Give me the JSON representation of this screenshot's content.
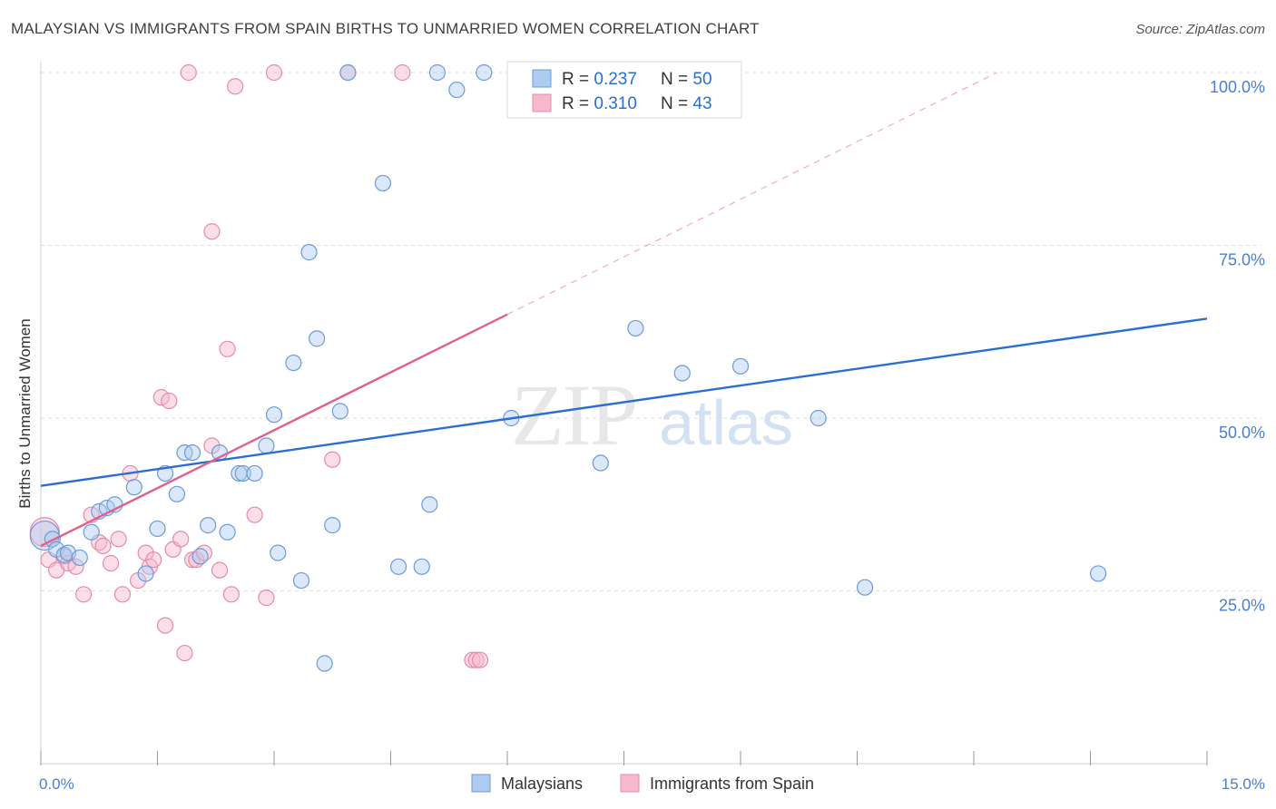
{
  "title": "MALAYSIAN VS IMMIGRANTS FROM SPAIN BIRTHS TO UNMARRIED WOMEN CORRELATION CHART",
  "source": "Source: ZipAtlas.com",
  "watermark": {
    "zip": "ZIP",
    "atlas": "atlas"
  },
  "colors": {
    "blue_fill": "#aecbf2",
    "blue_stroke": "#6b9bd8",
    "blue_line": "#2a6fd0",
    "pink_fill": "#f7b9cb",
    "pink_stroke": "#e88aa8",
    "pink_line": "#e0608e",
    "tick_label": "#4a7fd0",
    "grid": "#dcdcdc"
  },
  "legend": [
    {
      "r_label": "R = ",
      "r_value": "0.237",
      "n_label": "N = ",
      "n_value": "50"
    },
    {
      "r_label": "R = ",
      "r_value": "0.310",
      "n_label": "N = ",
      "n_value": "43"
    }
  ],
  "bottom_legend": [
    "Malaysians",
    "Immigrants from Spain"
  ],
  "chart_data": {
    "type": "scatter",
    "xlabel": "",
    "ylabel": "Births to Unmarried Women",
    "xlim": [
      0,
      15
    ],
    "ylim": [
      0,
      100
    ],
    "x_tick_labels": [
      "0.0%",
      "15.0%"
    ],
    "y_tick_labels": [
      "25.0%",
      "50.0%",
      "75.0%",
      "100.0%"
    ],
    "y_tick_values": [
      25,
      50,
      75,
      100
    ],
    "series": [
      {
        "name": "Malaysians",
        "r": 0.237,
        "n": 50,
        "trend": {
          "x": [
            0,
            15
          ],
          "y": [
            40.2,
            64.4
          ]
        },
        "points": [
          [
            0.05,
            33.0
          ],
          [
            0.15,
            32.5
          ],
          [
            0.2,
            31.0
          ],
          [
            0.3,
            30.2
          ],
          [
            0.35,
            30.5
          ],
          [
            0.5,
            29.8
          ],
          [
            0.65,
            33.5
          ],
          [
            0.75,
            36.5
          ],
          [
            0.85,
            37.0
          ],
          [
            0.95,
            37.5
          ],
          [
            1.2,
            40.0
          ],
          [
            1.35,
            27.5
          ],
          [
            1.5,
            34.0
          ],
          [
            1.6,
            42.0
          ],
          [
            1.75,
            39.0
          ],
          [
            1.85,
            45.0
          ],
          [
            1.95,
            45.0
          ],
          [
            2.05,
            30.0
          ],
          [
            2.15,
            34.5
          ],
          [
            2.3,
            45.0
          ],
          [
            2.4,
            33.5
          ],
          [
            2.55,
            42.0
          ],
          [
            2.6,
            42.0
          ],
          [
            2.75,
            42.0
          ],
          [
            2.9,
            46.0
          ],
          [
            3.0,
            50.5
          ],
          [
            3.05,
            30.5
          ],
          [
            3.25,
            58.0
          ],
          [
            3.35,
            26.5
          ],
          [
            3.45,
            74.0
          ],
          [
            3.55,
            61.5
          ],
          [
            3.75,
            34.5
          ],
          [
            3.85,
            51.0
          ],
          [
            3.95,
            100.0
          ],
          [
            4.4,
            84.0
          ],
          [
            4.6,
            28.5
          ],
          [
            4.9,
            28.5
          ],
          [
            5.0,
            37.5
          ],
          [
            5.1,
            100.0
          ],
          [
            5.35,
            97.5
          ],
          [
            5.7,
            100.0
          ],
          [
            3.65,
            14.5
          ],
          [
            6.05,
            50.0
          ],
          [
            7.2,
            43.5
          ],
          [
            7.65,
            63.0
          ],
          [
            8.25,
            56.5
          ],
          [
            9.0,
            57.5
          ],
          [
            10.0,
            50.0
          ],
          [
            10.6,
            25.5
          ],
          [
            13.6,
            27.5
          ]
        ]
      },
      {
        "name": "Immigrants from Spain",
        "r": 0.31,
        "n": 43,
        "trend": {
          "x": [
            0,
            6.0
          ],
          "y": [
            31.5,
            65.0
          ]
        },
        "trend_extension": {
          "x": [
            6.0,
            12.3
          ],
          "y": [
            65.0,
            100.0
          ]
        },
        "points": [
          [
            0.05,
            33.5
          ],
          [
            0.1,
            29.5
          ],
          [
            0.2,
            28.0
          ],
          [
            0.3,
            30.0
          ],
          [
            0.35,
            29.0
          ],
          [
            0.45,
            28.5
          ],
          [
            0.55,
            24.5
          ],
          [
            0.65,
            36.0
          ],
          [
            0.75,
            32.0
          ],
          [
            0.8,
            31.5
          ],
          [
            0.9,
            29.0
          ],
          [
            1.0,
            32.5
          ],
          [
            1.05,
            24.5
          ],
          [
            1.15,
            42.0
          ],
          [
            1.25,
            26.5
          ],
          [
            1.35,
            30.5
          ],
          [
            1.4,
            28.5
          ],
          [
            1.45,
            29.5
          ],
          [
            1.55,
            53.0
          ],
          [
            1.6,
            20.0
          ],
          [
            1.65,
            52.5
          ],
          [
            1.7,
            31.0
          ],
          [
            1.8,
            32.5
          ],
          [
            1.85,
            16.0
          ],
          [
            1.95,
            29.5
          ],
          [
            2.0,
            29.5
          ],
          [
            2.1,
            30.5
          ],
          [
            2.2,
            46.0
          ],
          [
            2.3,
            28.0
          ],
          [
            2.4,
            60.0
          ],
          [
            2.45,
            24.5
          ],
          [
            2.5,
            98.0
          ],
          [
            1.9,
            100.0
          ],
          [
            2.2,
            77.0
          ],
          [
            2.75,
            36.0
          ],
          [
            2.9,
            24.0
          ],
          [
            3.0,
            100.0
          ],
          [
            3.75,
            44.0
          ],
          [
            3.95,
            100.0
          ],
          [
            4.65,
            100.0
          ],
          [
            5.55,
            15.0
          ],
          [
            5.6,
            15.0
          ],
          [
            5.65,
            15.0
          ]
        ]
      }
    ]
  }
}
